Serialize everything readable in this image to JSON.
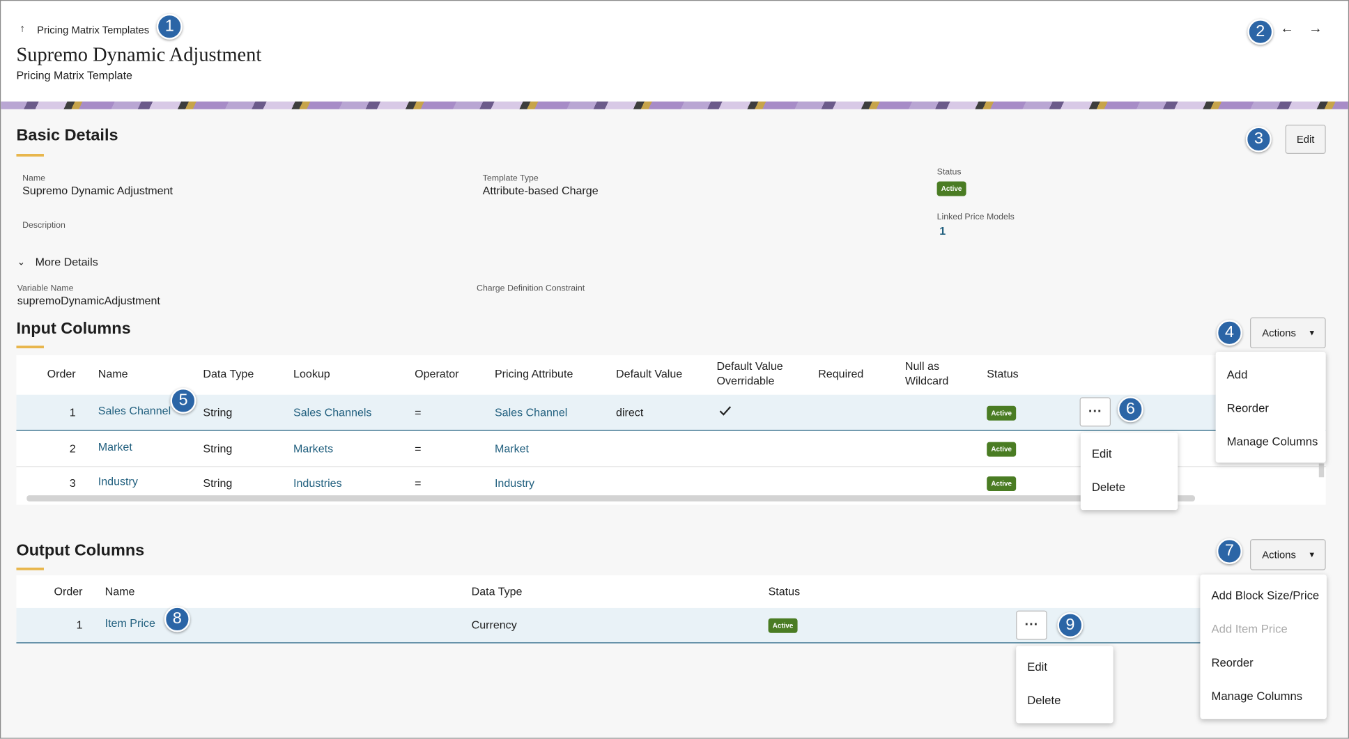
{
  "header": {
    "breadcrumb": "Pricing Matrix Templates",
    "title": "Supremo Dynamic Adjustment",
    "subtitle": "Pricing Matrix Template"
  },
  "callouts": [
    "1",
    "2",
    "3",
    "4",
    "5",
    "6",
    "7",
    "8",
    "9"
  ],
  "basic_details": {
    "title": "Basic Details",
    "edit": "Edit",
    "fields": [
      {
        "label": "Name",
        "value": "Supremo Dynamic Adjustment"
      },
      {
        "label": "Template Type",
        "value": "Attribute-based Charge"
      },
      {
        "label": "Status",
        "value": "Active"
      },
      {
        "label": "Linked Price Models",
        "value": "1"
      },
      {
        "label": "Description"
      }
    ],
    "more_details": "More Details",
    "more_fields": [
      {
        "label": "Variable Name",
        "value": "supremoDynamicAdjustment"
      },
      {
        "label": "Charge Definition Constraint"
      }
    ]
  },
  "input_columns": {
    "title": "Input Columns",
    "actions": "Actions",
    "headers": [
      "Order",
      "Name",
      "Data Type",
      "Lookup",
      "Operator",
      "Pricing Attribute",
      "Default Value",
      "Default Value Overridable",
      "Required",
      "Null as Wildcard",
      "Status"
    ],
    "rows": [
      {
        "order": "1",
        "name": "Sales Channel",
        "data_type": "String",
        "lookup": "Sales Channels",
        "operator": "=",
        "pricing_attribute": "Sales Channel",
        "default_value": "direct",
        "overridable": true,
        "status": "Active"
      },
      {
        "order": "2",
        "name": "Market",
        "data_type": "String",
        "lookup": "Markets",
        "operator": "=",
        "pricing_attribute": "Market",
        "status": "Active"
      },
      {
        "order": "3",
        "name": "Industry",
        "data_type": "String",
        "lookup": "Industries",
        "operator": "=",
        "pricing_attribute": "Industry",
        "status": "Active"
      }
    ],
    "actions_menu": [
      "Add",
      "Reorder",
      "Manage Columns"
    ],
    "row_menu": [
      "Edit",
      "Delete"
    ]
  },
  "output_columns": {
    "title": "Output Columns",
    "actions": "Actions",
    "headers": [
      "Order",
      "Name",
      "Data Type",
      "Status"
    ],
    "rows": [
      {
        "order": "1",
        "name": "Item Price",
        "data_type": "Currency",
        "status": "Active"
      }
    ],
    "actions_menu": [
      {
        "label": "Add Block Size/Price",
        "enabled": true
      },
      {
        "label": "Add Item Price",
        "enabled": false
      },
      {
        "label": "Reorder",
        "enabled": true
      },
      {
        "label": "Manage Columns",
        "enabled": true
      }
    ],
    "row_menu": [
      "Edit",
      "Delete"
    ]
  }
}
